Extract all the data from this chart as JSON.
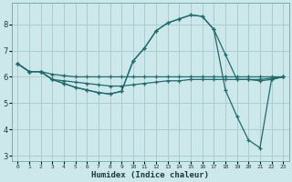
{
  "xlabel": "Humidex (Indice chaleur)",
  "bg_color": "#cce8eb",
  "grid_color": "#aacdd2",
  "line_color": "#1e6b6b",
  "xlim": [
    -0.5,
    23.5
  ],
  "ylim": [
    2.8,
    8.8
  ],
  "yticks": [
    3,
    4,
    5,
    6,
    7,
    8
  ],
  "xticks": [
    0,
    1,
    2,
    3,
    4,
    5,
    6,
    7,
    8,
    9,
    10,
    11,
    12,
    13,
    14,
    15,
    16,
    17,
    18,
    19,
    20,
    21,
    22,
    23
  ],
  "line1_x": [
    0,
    1,
    2,
    3,
    4,
    5,
    6,
    7,
    8,
    9,
    10,
    11,
    12,
    13,
    14,
    15,
    16,
    17,
    18,
    19,
    20,
    21,
    22,
    23
  ],
  "line1_y": [
    6.5,
    6.2,
    6.2,
    6.1,
    6.05,
    6.0,
    6.0,
    6.0,
    6.0,
    6.0,
    6.0,
    6.0,
    6.0,
    6.0,
    6.0,
    6.0,
    6.0,
    6.0,
    6.0,
    6.0,
    6.0,
    6.0,
    6.0,
    6.0
  ],
  "line2_x": [
    0,
    1,
    2,
    3,
    4,
    5,
    6,
    7,
    8,
    9,
    10,
    11,
    12,
    13,
    14,
    15,
    16,
    17,
    18,
    19,
    20,
    21,
    22,
    23
  ],
  "line2_y": [
    6.5,
    6.2,
    6.2,
    5.9,
    5.85,
    5.8,
    5.75,
    5.7,
    5.65,
    5.65,
    5.7,
    5.75,
    5.8,
    5.85,
    5.85,
    5.9,
    5.9,
    5.9,
    5.9,
    5.9,
    5.9,
    5.9,
    5.95,
    6.0
  ],
  "line3_x": [
    0,
    1,
    2,
    3,
    4,
    5,
    6,
    7,
    8,
    9,
    10,
    11,
    12,
    13,
    14,
    15,
    16,
    17,
    18,
    19,
    20,
    21,
    22,
    23
  ],
  "line3_y": [
    6.5,
    6.2,
    6.2,
    5.9,
    5.75,
    5.6,
    5.5,
    5.4,
    5.35,
    5.45,
    6.6,
    7.1,
    7.75,
    8.05,
    8.2,
    8.35,
    8.3,
    7.8,
    6.85,
    5.9,
    5.9,
    5.85,
    5.9,
    6.0
  ],
  "line4_x": [
    0,
    1,
    2,
    3,
    4,
    5,
    6,
    7,
    8,
    9,
    10,
    11,
    12,
    13,
    14,
    15,
    16,
    17,
    18,
    19,
    20,
    21,
    22,
    23
  ],
  "line4_y": [
    6.5,
    6.2,
    6.2,
    5.9,
    5.75,
    5.6,
    5.5,
    5.4,
    5.35,
    5.45,
    6.6,
    7.1,
    7.75,
    8.05,
    8.2,
    8.35,
    8.3,
    7.8,
    5.5,
    4.5,
    3.6,
    3.3,
    5.9,
    6.0
  ]
}
